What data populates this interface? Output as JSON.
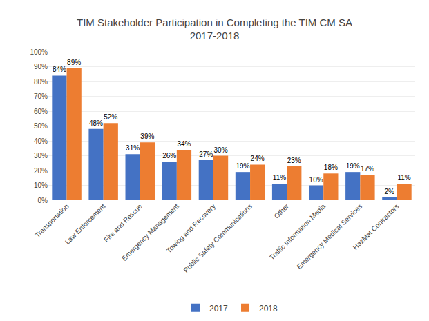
{
  "chart_data": {
    "type": "bar",
    "title": "TIM Stakeholder Participation in Completing the TIM CM SA\n2017-2018",
    "categories": [
      "Transportation",
      "Law Enforcement",
      "Fire and Rescue",
      "Emergency Management",
      "Towing and Recovery",
      "Public Safety Communications",
      "Other",
      "Traffic Information Media",
      "Emergency Medical Services",
      "HazMat Contractors"
    ],
    "series": [
      {
        "name": "2017",
        "color": "#4472C4",
        "values": [
          84,
          48,
          31,
          26,
          27,
          19,
          11,
          10,
          19,
          2
        ],
        "value_labels": [
          "84%",
          "48%",
          "31%",
          "26%",
          "27%",
          "19%",
          "11%",
          "10%",
          "19%",
          "2%"
        ]
      },
      {
        "name": "2018",
        "color": "#ED7D31",
        "values": [
          89,
          52,
          39,
          34,
          30,
          24,
          23,
          18,
          17,
          11
        ],
        "value_labels": [
          "89%",
          "52%",
          "39%",
          "34%",
          "30%",
          "24%",
          "23%",
          "18%",
          "17%",
          "11%"
        ]
      }
    ],
    "ylim": [
      0,
      100
    ],
    "yticks": [
      {
        "value": 0,
        "label": "0%"
      },
      {
        "value": 10,
        "label": "10%"
      },
      {
        "value": 20,
        "label": "20%"
      },
      {
        "value": 30,
        "label": "30%"
      },
      {
        "value": 40,
        "label": "40%"
      },
      {
        "value": 50,
        "label": "50%"
      },
      {
        "value": 60,
        "label": "60%"
      },
      {
        "value": 70,
        "label": "70%"
      },
      {
        "value": 80,
        "label": "80%"
      },
      {
        "value": 90,
        "label": "90%"
      },
      {
        "value": 100,
        "label": "100%"
      }
    ],
    "grid": true,
    "legend": "bottom",
    "data_labels": true
  }
}
